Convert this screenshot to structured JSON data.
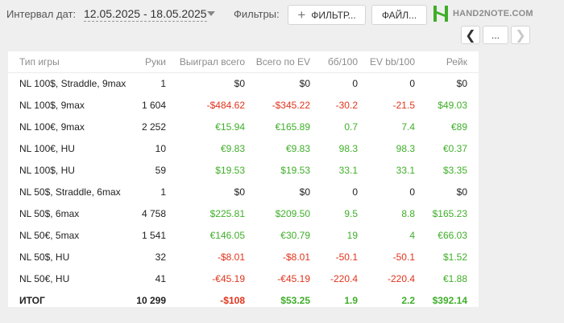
{
  "filter_bar": {
    "interval_label": "Интервал дат:",
    "interval_value": "12.05.2025 - 18.05.2025",
    "filters_label": "Фильтры:",
    "filter_button": "ФИЛЬТР...",
    "file_button": "ФАЙЛ...",
    "more_button": "..."
  },
  "logo": {
    "text": "HAND2NOTE.COM"
  },
  "colors": {
    "positive": "#3fae29",
    "negative": "#e0341c",
    "logo": "#3fae29"
  },
  "table": {
    "headers": [
      "Тип игры",
      "Руки",
      "Выиграл всего",
      "Всего по EV",
      "бб/100",
      "EV bb/100",
      "Рейк"
    ],
    "rows": [
      {
        "game": "NL 100$, Straddle, 9max",
        "hands": "1",
        "won": "$0",
        "ev": "$0",
        "bb": "0",
        "evbb": "0",
        "rake": "$0"
      },
      {
        "game": "NL 100$, 9max",
        "hands": "1 604",
        "won": "-$484.62",
        "ev": "-$345.22",
        "bb": "-30.2",
        "evbb": "-21.5",
        "rake": "$49.03"
      },
      {
        "game": "NL 100€, 9max",
        "hands": "2 252",
        "won": "€15.94",
        "ev": "€165.89",
        "bb": "0.7",
        "evbb": "7.4",
        "rake": "€89"
      },
      {
        "game": "NL 100€, HU",
        "hands": "10",
        "won": "€9.83",
        "ev": "€9.83",
        "bb": "98.3",
        "evbb": "98.3",
        "rake": "€0.37"
      },
      {
        "game": "NL 100$, HU",
        "hands": "59",
        "won": "$19.53",
        "ev": "$19.53",
        "bb": "33.1",
        "evbb": "33.1",
        "rake": "$3.35"
      },
      {
        "game": "NL 50$, Straddle, 6max",
        "hands": "1",
        "won": "$0",
        "ev": "$0",
        "bb": "0",
        "evbb": "0",
        "rake": "$0"
      },
      {
        "game": "NL 50$, 6max",
        "hands": "4 758",
        "won": "$225.81",
        "ev": "$209.50",
        "bb": "9.5",
        "evbb": "8.8",
        "rake": "$165.23"
      },
      {
        "game": "NL 50€, 5max",
        "hands": "1 541",
        "won": "€146.05",
        "ev": "€30.79",
        "bb": "19",
        "evbb": "4",
        "rake": "€66.03"
      },
      {
        "game": "NL 50$, HU",
        "hands": "32",
        "won": "-$8.01",
        "ev": "-$8.01",
        "bb": "-50.1",
        "evbb": "-50.1",
        "rake": "$1.52"
      },
      {
        "game": "NL 50€, HU",
        "hands": "41",
        "won": "-€45.19",
        "ev": "-€45.19",
        "bb": "-220.4",
        "evbb": "-220.4",
        "rake": "€1.88"
      }
    ],
    "total": {
      "game": "ИТОГ",
      "hands": "10 299",
      "won": "-$108",
      "ev": "$53.25",
      "bb": "1.9",
      "evbb": "2.2",
      "rake": "$392.14"
    }
  }
}
